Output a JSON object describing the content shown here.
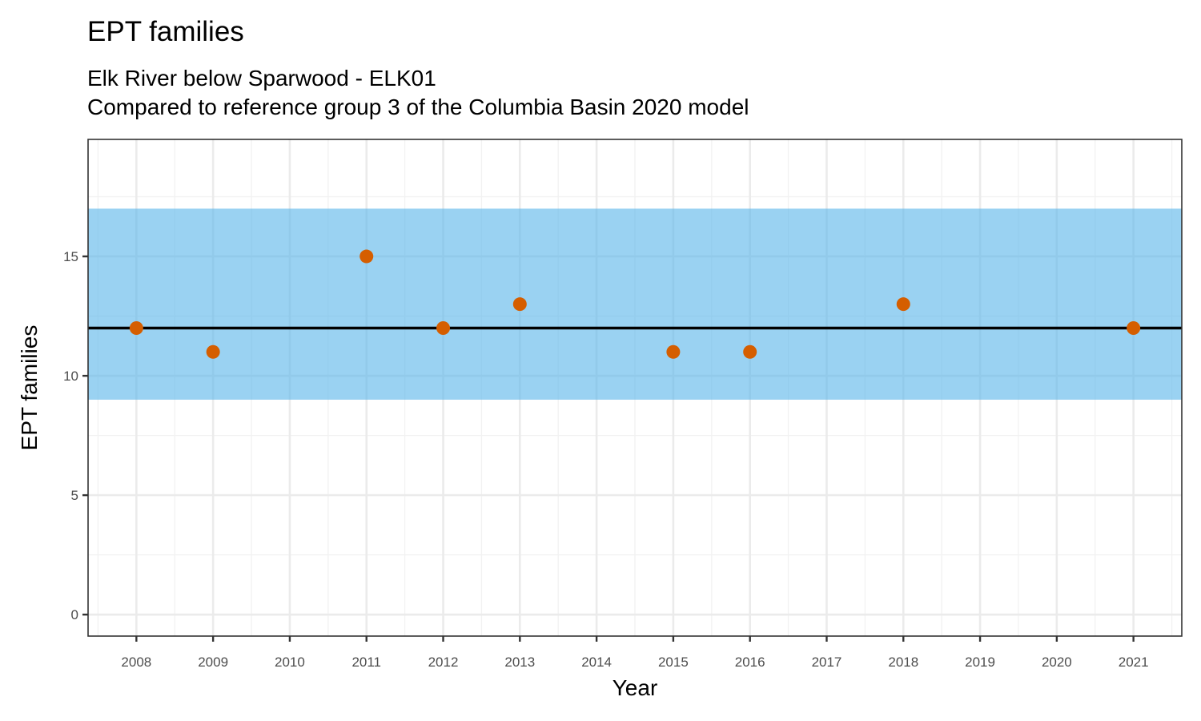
{
  "chart_data": {
    "type": "scatter",
    "title": "EPT families",
    "subtitle": [
      "Elk River below Sparwood - ELK01",
      "Compared to reference group 3 of the Columbia Basin 2020 model"
    ],
    "xlabel": "Year",
    "ylabel": "EPT families",
    "x_categories": [
      "2008",
      "2009",
      "2010",
      "2011",
      "2012",
      "2013",
      "2014",
      "2015",
      "2016",
      "2017",
      "2018",
      "2019",
      "2020",
      "2021"
    ],
    "yticks": [
      0,
      5,
      10,
      15
    ],
    "ylim": [
      -0.9,
      19.9
    ],
    "xlim": [
      2007.37,
      2021.63
    ],
    "points": [
      {
        "x": 2008,
        "y": 12
      },
      {
        "x": 2009,
        "y": 11
      },
      {
        "x": 2011,
        "y": 15
      },
      {
        "x": 2012,
        "y": 12
      },
      {
        "x": 2013,
        "y": 13
      },
      {
        "x": 2015,
        "y": 11
      },
      {
        "x": 2016,
        "y": 11
      },
      {
        "x": 2018,
        "y": 13
      },
      {
        "x": 2021,
        "y": 12
      }
    ],
    "reference_band": {
      "ymin": 9,
      "ymax": 17
    },
    "reference_line": {
      "y": 12
    },
    "grid": true,
    "legend": "none",
    "colors": {
      "points": "#d55e00",
      "band": "#56b4e9",
      "line": "#000000",
      "grid_major": "#ebebeb",
      "grid_minor": "#f2f2f2",
      "border": "#333333"
    }
  }
}
